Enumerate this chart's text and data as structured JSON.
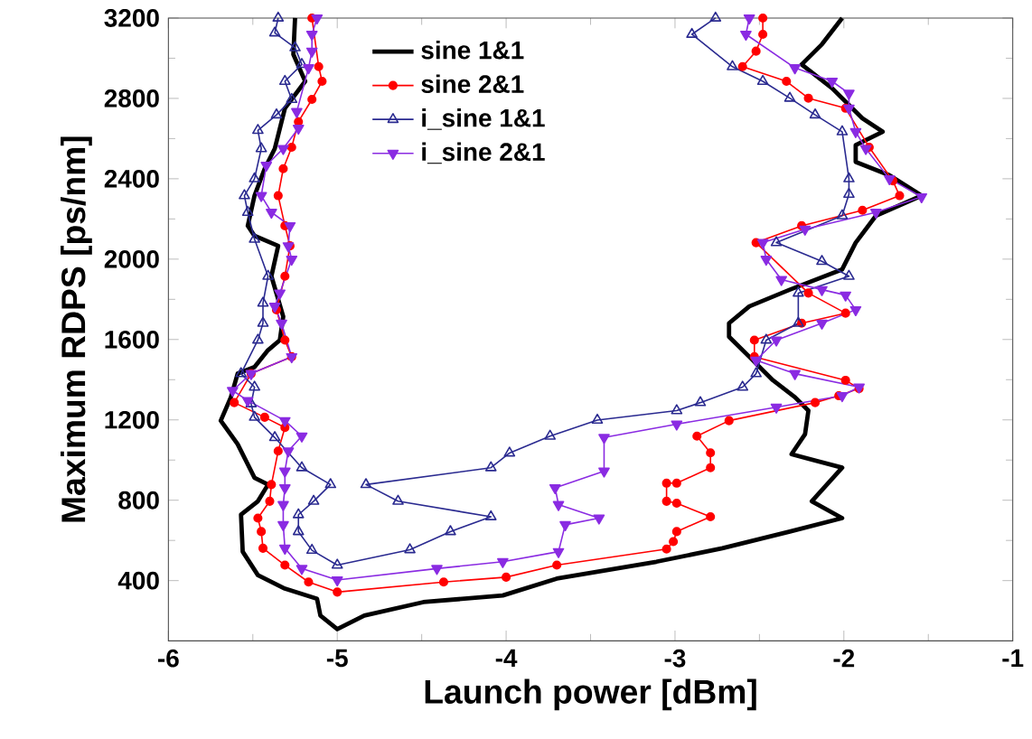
{
  "chart_data": {
    "type": "line",
    "xlabel": "Launch power [dBm]",
    "ylabel": "Maximum RDPS [ps/nm]",
    "xlim": [
      -6,
      -1
    ],
    "ylim": [
      100,
      3200
    ],
    "xticks": [
      -6,
      -5,
      -4,
      -3,
      -2,
      -1
    ],
    "yticks": [
      400,
      800,
      1200,
      1600,
      2000,
      2400,
      2800,
      3200
    ],
    "legend": "top left",
    "grid": false,
    "series": [
      {
        "name": "sine 1&1",
        "color": "#000000",
        "marker": "none",
        "x": [
          -5.25,
          -5.26,
          -5.19,
          -5.31,
          -5.37,
          -5.43,
          -5.49,
          -5.53,
          -5.49,
          -5.35,
          -5.39,
          -5.32,
          -5.34,
          -5.41,
          -5.49,
          -5.59,
          -5.63,
          -5.69,
          -5.59,
          -5.49,
          -5.41,
          -5.47,
          -5.57,
          -5.56,
          -5.47,
          -5.31,
          -5.12,
          -5.1,
          -5.0,
          -4.84,
          -4.49,
          -4.02,
          -3.7,
          -3.11,
          -2.72,
          -2.32,
          -2.01,
          -2.19,
          -2.01,
          -2.31,
          -2.23,
          -2.21,
          -2.29,
          -2.42,
          -2.56,
          -2.68,
          -2.68,
          -2.56,
          -2.32,
          -2.01,
          -1.93,
          -1.81,
          -1.54,
          -1.73,
          -1.93,
          -1.93,
          -1.77,
          -1.89,
          -2.07,
          -2.25,
          -2.13,
          -2.01
        ],
        "values": [
          3200,
          3019,
          2885,
          2751,
          2550,
          2450,
          2316,
          2166,
          2116,
          2066,
          1915,
          1714,
          1597,
          1547,
          1463,
          1430,
          1313,
          1196,
          1079,
          912,
          878,
          795,
          728,
          544,
          427,
          360,
          310,
          226,
          159,
          226,
          293,
          326,
          410,
          494,
          561,
          644,
          711,
          795,
          962,
          1029,
          1129,
          1246,
          1313,
          1397,
          1514,
          1614,
          1681,
          1765,
          1848,
          1949,
          2082,
          2216,
          2316,
          2417,
          2484,
          2567,
          2634,
          2701,
          2851,
          2969,
          3069,
          3200
        ]
      },
      {
        "name": "sine 2&1",
        "color": "#ff0000",
        "marker": "circle",
        "x": [
          -5.15,
          -5.11,
          -5.09,
          -5.15,
          -5.23,
          -5.27,
          -5.32,
          -5.35,
          -5.31,
          -5.28,
          -5.31,
          -5.36,
          -5.31,
          -5.27,
          -5.51,
          -5.61,
          -5.43,
          -5.31,
          -5.35,
          -5.39,
          -5.4,
          -5.47,
          -5.45,
          -5.44,
          -5.31,
          -5.17,
          -5.0,
          -4.37,
          -4.0,
          -3.7,
          -3.05,
          -3.01,
          -2.99,
          -2.79,
          -2.99,
          -3.05,
          -3.05,
          -2.99,
          -2.79,
          -2.79,
          -2.87,
          -2.68,
          -2.17,
          -2.03,
          -1.91,
          -1.99,
          -2.53,
          -2.53,
          -2.25,
          -1.99,
          -2.21,
          -2.52,
          -2.25,
          -1.89,
          -1.67,
          -1.71,
          -1.85,
          -1.99,
          -2.21,
          -2.34,
          -2.6,
          -2.52,
          -2.48,
          -2.48
        ],
        "values": [
          3200,
          2958,
          2885,
          2795,
          2684,
          2557,
          2450,
          2316,
          2166,
          2066,
          1915,
          1748,
          1597,
          1514,
          1430,
          1286,
          1213,
          1162,
          1045,
          878,
          795,
          711,
          644,
          561,
          477,
          393,
          343,
          393,
          417,
          477,
          557,
          594,
          644,
          718,
          785,
          795,
          885,
          885,
          962,
          1036,
          1119,
          1196,
          1286,
          1320,
          1356,
          1397,
          1514,
          1597,
          1681,
          1731,
          1831,
          2082,
          2166,
          2243,
          2316,
          2390,
          2557,
          2751,
          2801,
          2885,
          2958,
          3035,
          3119,
          3200
        ]
      },
      {
        "name": "i_sine 1&1",
        "color": "#2a2a90",
        "marker": "triangle",
        "x": [
          -5.35,
          -5.37,
          -5.25,
          -5.21,
          -5.31,
          -5.27,
          -5.36,
          -5.47,
          -5.45,
          -5.49,
          -5.55,
          -5.53,
          -5.49,
          -5.41,
          -5.44,
          -5.44,
          -5.47,
          -5.57,
          -5.49,
          -5.51,
          -5.49,
          -5.37,
          -5.21,
          -5.04,
          -5.14,
          -5.23,
          -5.23,
          -5.15,
          -5.0,
          -4.57,
          -4.33,
          -4.09,
          -4.64,
          -4.83,
          -4.09,
          -3.98,
          -3.74,
          -3.46,
          -2.99,
          -2.85,
          -2.6,
          -2.52,
          -2.46,
          -2.27,
          -2.27,
          -1.97,
          -2.13,
          -2.4,
          -2.01,
          -1.97,
          -1.97,
          -2.01,
          -2.17,
          -2.32,
          -2.48,
          -2.66,
          -2.9,
          -2.76
        ],
        "values": [
          3200,
          3126,
          3052,
          2969,
          2885,
          2795,
          2718,
          2641,
          2550,
          2400,
          2316,
          2233,
          2099,
          1915,
          1781,
          1681,
          1597,
          1430,
          1363,
          1280,
          1213,
          1112,
          962,
          878,
          795,
          728,
          644,
          551,
          477,
          554,
          644,
          718,
          795,
          878,
          962,
          1035,
          1119,
          1199,
          1246,
          1286,
          1363,
          1430,
          1597,
          1681,
          1831,
          1915,
          1989,
          2082,
          2216,
          2323,
          2400,
          2634,
          2718,
          2801,
          2885,
          2958,
          3119,
          3200
        ]
      },
      {
        "name": "i_sine 2&1",
        "color": "#8a2be2",
        "marker": "triangle-down",
        "x": [
          -5.12,
          -5.15,
          -5.15,
          -5.17,
          -5.24,
          -5.23,
          -5.32,
          -5.42,
          -5.45,
          -5.39,
          -5.28,
          -5.29,
          -5.27,
          -5.34,
          -5.37,
          -5.33,
          -5.27,
          -5.51,
          -5.62,
          -5.53,
          -5.31,
          -5.21,
          -5.29,
          -5.31,
          -5.31,
          -5.32,
          -5.32,
          -5.31,
          -5.21,
          -5.0,
          -4.41,
          -4.02,
          -3.69,
          -3.65,
          -3.45,
          -3.69,
          -3.71,
          -3.42,
          -3.42,
          -2.99,
          -2.4,
          -2.01,
          -1.91,
          -2.29,
          -2.52,
          -2.4,
          -2.13,
          -1.93,
          -1.99,
          -2.13,
          -2.37,
          -2.46,
          -2.48,
          -2.23,
          -1.81,
          -1.54,
          -1.73,
          -1.87,
          -1.93,
          -1.97,
          -1.97,
          -2.07,
          -2.29,
          -2.58,
          -2.56
        ],
        "values": [
          3200,
          3119,
          3035,
          2952,
          2734,
          2651,
          2550,
          2467,
          2316,
          2233,
          2166,
          2066,
          1999,
          1831,
          1765,
          1681,
          1514,
          1430,
          1346,
          1296,
          1196,
          1119,
          1045,
          945,
          862,
          778,
          678,
          561,
          460,
          403,
          460,
          494,
          544,
          678,
          711,
          778,
          862,
          945,
          1112,
          1179,
          1263,
          1320,
          1363,
          1430,
          1497,
          1597,
          1681,
          1748,
          1821,
          1848,
          1898,
          1999,
          2082,
          2149,
          2233,
          2310,
          2400,
          2550,
          2634,
          2751,
          2825,
          2885,
          2952,
          3119,
          3200
        ]
      }
    ]
  }
}
